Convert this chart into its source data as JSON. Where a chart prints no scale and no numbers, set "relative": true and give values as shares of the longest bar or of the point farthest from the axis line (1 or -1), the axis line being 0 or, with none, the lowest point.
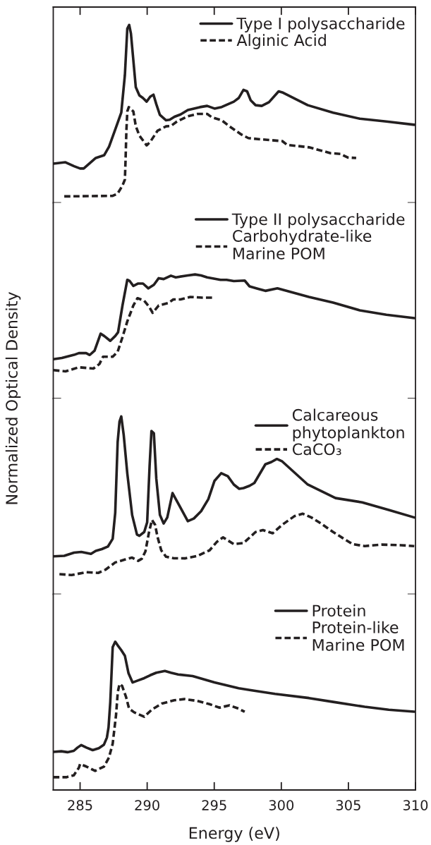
{
  "chart_data": [
    {
      "type": "line",
      "relative": true,
      "xlim": [
        283,
        310
      ],
      "xticks": [
        285,
        290,
        295,
        300,
        305,
        310
      ],
      "tick_labels": false,
      "legend": "top right",
      "series": [
        {
          "name": "Type I polysaccharide",
          "color": "#231f20",
          "line_style": "solid",
          "x": [
            283.01,
            283.91,
            284.55,
            285.0,
            285.27,
            285.54,
            286.17,
            286.8,
            287.16,
            287.62,
            288.07,
            288.34,
            288.52,
            288.66,
            288.79,
            289.15,
            289.42,
            289.69,
            289.96,
            290.23,
            290.47,
            290.68,
            290.95,
            291.41,
            291.68,
            292.04,
            292.49,
            293.03,
            293.93,
            294.47,
            295.02,
            295.56,
            296.46,
            296.82,
            297.18,
            297.45,
            297.72,
            298.08,
            298.54,
            299.08,
            299.8,
            300.07,
            301.97,
            303.86,
            305.85,
            307.83,
            309.91
          ],
          "values": [
            0.22,
            0.228,
            0.206,
            0.193,
            0.193,
            0.211,
            0.252,
            0.268,
            0.316,
            0.412,
            0.507,
            0.719,
            0.98,
            1.0,
            0.952,
            0.651,
            0.604,
            0.589,
            0.569,
            0.597,
            0.608,
            0.555,
            0.494,
            0.464,
            0.467,
            0.484,
            0.497,
            0.522,
            0.538,
            0.545,
            0.53,
            0.539,
            0.569,
            0.589,
            0.635,
            0.627,
            0.576,
            0.549,
            0.545,
            0.566,
            0.627,
            0.621,
            0.549,
            0.507,
            0.473,
            0.457,
            0.439
          ]
        },
        {
          "name": "Alginic Acid",
          "color": "#231f20",
          "line_style": "dashed",
          "x": [
            283.82,
            287.43,
            287.8,
            288.16,
            288.34,
            288.39,
            288.45,
            288.52,
            288.63,
            288.97,
            289.15,
            289.42,
            289.96,
            290.23,
            290.77,
            291.41,
            291.77,
            292.22,
            293.03,
            293.75,
            294.47,
            294.84,
            295.56,
            296.1,
            297.0,
            297.54,
            298.45,
            300.07,
            300.43,
            302.06,
            303.68,
            304.4,
            304.94,
            305.58
          ],
          "values": [
            0.036,
            0.039,
            0.052,
            0.097,
            0.131,
            0.241,
            0.405,
            0.514,
            0.538,
            0.514,
            0.432,
            0.378,
            0.323,
            0.343,
            0.405,
            0.43,
            0.432,
            0.457,
            0.487,
            0.5,
            0.5,
            0.48,
            0.464,
            0.432,
            0.385,
            0.364,
            0.357,
            0.347,
            0.326,
            0.312,
            0.279,
            0.275,
            0.255,
            0.252
          ]
        }
      ]
    },
    {
      "type": "line",
      "relative": true,
      "xlim": [
        283,
        310
      ],
      "tick_labels": false,
      "legend": "top right",
      "ylabel": "Normalized Optical Density",
      "series": [
        {
          "name": "Type II polysaccharide",
          "color": "#231f20",
          "line_style": "solid",
          "x": [
            283.01,
            283.64,
            284.55,
            284.91,
            285.45,
            285.72,
            286.08,
            286.53,
            286.8,
            287.25,
            287.62,
            287.83,
            288.16,
            288.52,
            288.7,
            288.97,
            289.33,
            289.69,
            290.09,
            290.5,
            290.86,
            291.23,
            291.77,
            292.13,
            293.03,
            293.57,
            294.02,
            294.47,
            295.47,
            295.92,
            296.46,
            297.27,
            297.63,
            298.27,
            298.81,
            299.71,
            302.06,
            303.86,
            305.85,
            307.83,
            309.91
          ],
          "values": [
            0.317,
            0.327,
            0.352,
            0.366,
            0.366,
            0.351,
            0.386,
            0.523,
            0.504,
            0.465,
            0.504,
            0.534,
            0.75,
            0.957,
            0.947,
            0.908,
            0.927,
            0.927,
            0.888,
            0.917,
            0.97,
            0.963,
            0.99,
            0.977,
            0.992,
            1.0,
            0.992,
            0.977,
            0.957,
            0.957,
            0.947,
            0.951,
            0.904,
            0.884,
            0.868,
            0.888,
            0.819,
            0.773,
            0.711,
            0.675,
            0.648
          ]
        },
        {
          "name": "Carbohydrate-like\nMarine POM",
          "color": "#231f20",
          "line_style": "dashed",
          "x": [
            283.01,
            283.91,
            284.91,
            285.99,
            286.44,
            286.71,
            287.43,
            287.8,
            288.16,
            288.52,
            288.97,
            289.28,
            289.78,
            290.14,
            290.41,
            290.86,
            291.59,
            291.95,
            292.49,
            293.21,
            294.11,
            295.02
          ],
          "values": [
            0.229,
            0.219,
            0.252,
            0.242,
            0.278,
            0.337,
            0.337,
            0.377,
            0.495,
            0.622,
            0.75,
            0.809,
            0.789,
            0.741,
            0.691,
            0.75,
            0.77,
            0.799,
            0.799,
            0.819,
            0.813,
            0.813
          ]
        }
      ]
    },
    {
      "type": "line",
      "relative": true,
      "xlim": [
        283,
        310
      ],
      "tick_labels": false,
      "legend": "top right",
      "series": [
        {
          "name": "Calcareous\nphytoplankton",
          "color": "#231f20",
          "line_style": "solid",
          "x": [
            283.01,
            283.82,
            284.55,
            285.09,
            285.81,
            286.17,
            286.62,
            287.07,
            287.43,
            287.62,
            287.8,
            287.94,
            288.07,
            288.25,
            288.52,
            288.88,
            289.24,
            289.42,
            289.78,
            290.0,
            290.18,
            290.32,
            290.5,
            290.68,
            290.95,
            291.23,
            291.5,
            291.89,
            292.58,
            293.03,
            293.48,
            294.02,
            294.56,
            295.02,
            295.52,
            296.01,
            296.46,
            296.86,
            297.18,
            297.63,
            297.99,
            298.81,
            299.26,
            299.67,
            300.07,
            301.97,
            304.04,
            306.03,
            308.01,
            309.91
          ],
          "values": [
            0.213,
            0.216,
            0.234,
            0.238,
            0.227,
            0.244,
            0.254,
            0.268,
            0.312,
            0.459,
            0.856,
            0.972,
            1.0,
            0.897,
            0.679,
            0.446,
            0.336,
            0.329,
            0.35,
            0.405,
            0.72,
            0.918,
            0.905,
            0.651,
            0.446,
            0.398,
            0.432,
            0.569,
            0.474,
            0.411,
            0.426,
            0.467,
            0.535,
            0.638,
            0.681,
            0.664,
            0.617,
            0.593,
            0.597,
            0.61,
            0.626,
            0.731,
            0.744,
            0.761,
            0.747,
            0.617,
            0.541,
            0.517,
            0.474,
            0.432
          ]
        },
        {
          "name": "CaCO₃",
          "color": "#231f20",
          "line_style": "dashed",
          "x": [
            283.46,
            284.37,
            285.45,
            286.35,
            286.89,
            287.62,
            288.34,
            288.88,
            289.33,
            289.6,
            289.87,
            290.14,
            290.36,
            290.59,
            290.77,
            291.05,
            291.41,
            291.95,
            292.85,
            293.75,
            294.65,
            295.2,
            295.65,
            296.46,
            297.18,
            298.08,
            298.63,
            299.35,
            300.07,
            300.97,
            301.6,
            302.24,
            302.96,
            303.86,
            304.58,
            305.31,
            306.21,
            307.47,
            308.92,
            309.91
          ],
          "values": [
            0.113,
            0.108,
            0.124,
            0.12,
            0.138,
            0.179,
            0.195,
            0.206,
            0.188,
            0.2,
            0.241,
            0.35,
            0.418,
            0.391,
            0.323,
            0.247,
            0.211,
            0.203,
            0.202,
            0.216,
            0.247,
            0.295,
            0.32,
            0.282,
            0.288,
            0.35,
            0.361,
            0.343,
            0.391,
            0.439,
            0.453,
            0.432,
            0.398,
            0.35,
            0.316,
            0.282,
            0.271,
            0.279,
            0.276,
            0.271
          ]
        }
      ]
    },
    {
      "type": "line",
      "relative": true,
      "xlim": [
        283,
        310
      ],
      "xticks": [
        285,
        290,
        295,
        300,
        305,
        310
      ],
      "tick_labels": "x",
      "legend": "top right",
      "xlabel": "Energy (eV)",
      "series": [
        {
          "name": "Protein",
          "color": "#231f20",
          "line_style": "solid",
          "x": [
            283.0,
            283.6,
            284.06,
            284.53,
            284.81,
            285.09,
            285.47,
            285.94,
            286.4,
            286.78,
            287.0,
            287.12,
            287.25,
            287.43,
            287.62,
            287.8,
            288.07,
            288.34,
            288.61,
            288.91,
            289.33,
            289.78,
            290.23,
            290.68,
            291.32,
            291.77,
            292.31,
            293.39,
            295.02,
            296.82,
            297.72,
            299.53,
            302.06,
            303.86,
            306.21,
            308.01,
            309.91
          ],
          "values": [
            0.257,
            0.261,
            0.255,
            0.264,
            0.286,
            0.303,
            0.286,
            0.269,
            0.282,
            0.306,
            0.354,
            0.422,
            0.592,
            0.963,
            1.0,
            0.976,
            0.943,
            0.905,
            0.787,
            0.725,
            0.739,
            0.754,
            0.774,
            0.791,
            0.803,
            0.791,
            0.779,
            0.768,
            0.725,
            0.686,
            0.673,
            0.648,
            0.62,
            0.594,
            0.561,
            0.541,
            0.528
          ]
        },
        {
          "name": "Protein-like\nMarine POM",
          "color": "#231f20",
          "line_style": "dashed",
          "x": [
            283.0,
            283.97,
            284.53,
            284.91,
            285.0,
            285.47,
            286.12,
            286.78,
            287.15,
            287.43,
            287.68,
            287.81,
            287.94,
            288.13,
            288.43,
            288.65,
            289.03,
            289.78,
            290.34,
            291.09,
            292.02,
            292.77,
            293.71,
            294.64,
            295.39,
            296.14,
            296.8,
            297.27
          ],
          "values": [
            0.086,
            0.086,
            0.099,
            0.15,
            0.175,
            0.158,
            0.129,
            0.158,
            0.218,
            0.312,
            0.506,
            0.66,
            0.715,
            0.702,
            0.626,
            0.549,
            0.524,
            0.494,
            0.541,
            0.583,
            0.605,
            0.613,
            0.601,
            0.579,
            0.555,
            0.571,
            0.549,
            0.527
          ]
        }
      ]
    }
  ]
}
